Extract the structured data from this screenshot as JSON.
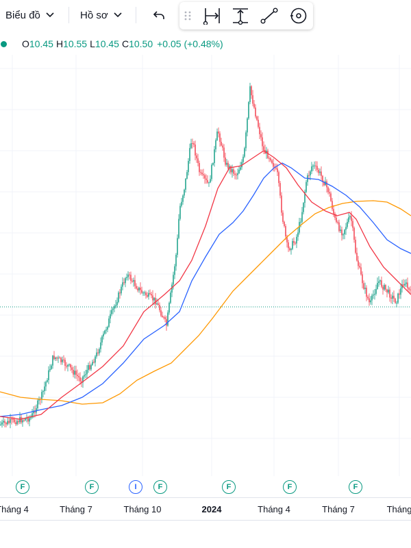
{
  "toolbar": {
    "chart_menu": "Biểu đồ",
    "profile_menu": "Hồ sơ",
    "tools": [
      "grip-icon",
      "date-range-icon",
      "price-range-icon",
      "trend-line-icon",
      "magnet-icon"
    ]
  },
  "legend": {
    "open_label": "O",
    "open_value": "10.45",
    "high_label": "H",
    "high_value": "10.55",
    "low_label": "L",
    "low_value": "10.45",
    "close_label": "C",
    "close_value": "10.50",
    "change": "+0.05 (+0.48%)"
  },
  "colors": {
    "up": "#089981",
    "down": "#f23645",
    "ma_fast": "#f23645",
    "ma_mid": "#2962ff",
    "ma_slow": "#ff9800",
    "price_line": "#089981"
  },
  "events": [
    "F",
    "F",
    "I",
    "F",
    "F",
    "F",
    "F"
  ],
  "x_axis": {
    "labels": [
      "Tháng 4",
      "Tháng 7",
      "Tháng 10",
      "2024",
      "Tháng 4",
      "Tháng 7",
      "Tháng"
    ]
  }
}
